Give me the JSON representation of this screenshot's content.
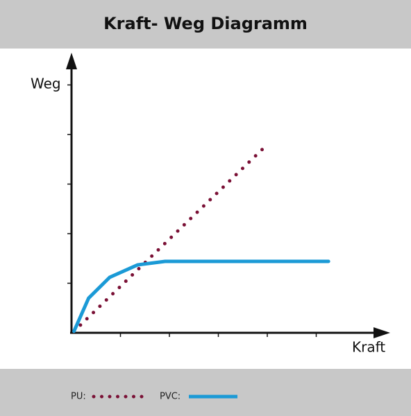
{
  "chart_data": {
    "type": "line",
    "title": "Kraft- Weg Diagramm",
    "x_label": "Kraft",
    "y_label": "Weg",
    "xlim": [
      0,
      6.3
    ],
    "ylim": [
      0,
      5.6
    ],
    "xticks": [
      1,
      2,
      3,
      4,
      5
    ],
    "yticks": [
      1,
      2,
      3,
      4,
      5
    ],
    "series": [
      {
        "name": "PU:",
        "color": "#7a1035",
        "style": "dotted",
        "x": [
          0.05,
          3.95
        ],
        "values": [
          0.03,
          3.75
        ]
      },
      {
        "name": "PVC:",
        "color": "#1b9ad6",
        "style": "solid",
        "x": [
          0.05,
          0.35,
          0.78,
          1.35,
          1.91,
          5.25
        ],
        "values": [
          0.03,
          0.7,
          1.12,
          1.37,
          1.44,
          1.44
        ]
      }
    ]
  }
}
